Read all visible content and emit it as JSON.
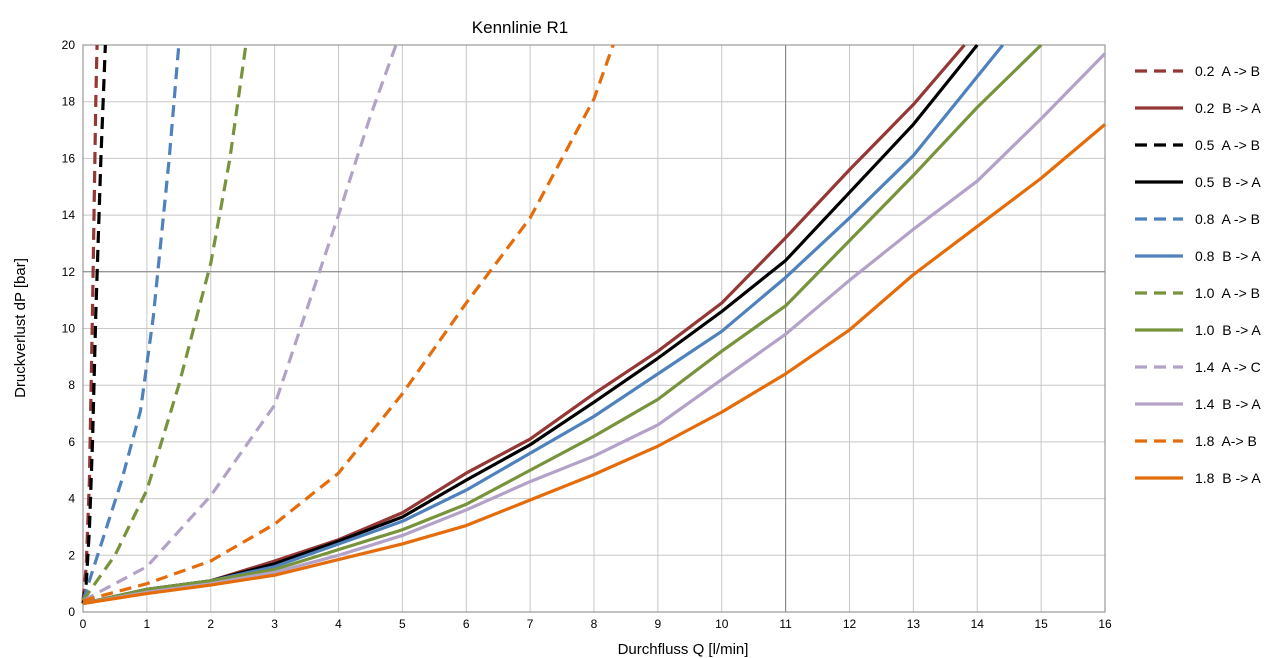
{
  "chart_data": {
    "type": "line",
    "title": "Kennlinie R1",
    "xlabel": "Durchfluss Q [l/min]",
    "ylabel": "Druckverlust dP [bar]",
    "xlim": [
      0,
      16
    ],
    "ylim": [
      0,
      20
    ],
    "xticks": [
      0,
      1,
      2,
      3,
      4,
      5,
      6,
      7,
      8,
      9,
      10,
      11,
      12,
      13,
      14,
      15,
      16
    ],
    "yticks": [
      0,
      2,
      4,
      6,
      8,
      10,
      12,
      14,
      16,
      18,
      20
    ],
    "grid": true,
    "legend_position": "right",
    "series": [
      {
        "name": "0.2  A -> B",
        "color": "#953735",
        "dash": true,
        "points": [
          [
            0,
            0.4
          ],
          [
            0.05,
            1.6
          ],
          [
            0.1,
            4.6
          ],
          [
            0.15,
            10.8
          ],
          [
            0.2,
            18.0
          ],
          [
            0.22,
            20.0
          ]
        ]
      },
      {
        "name": "0.2  B -> A",
        "color": "#953735",
        "dash": false,
        "points": [
          [
            0,
            0.3
          ],
          [
            1,
            0.8
          ],
          [
            2,
            1.1
          ],
          [
            3,
            1.8
          ],
          [
            4,
            2.55
          ],
          [
            5,
            3.5
          ],
          [
            6,
            4.9
          ],
          [
            7,
            6.1
          ],
          [
            8,
            7.7
          ],
          [
            9,
            9.2
          ],
          [
            10,
            10.9
          ],
          [
            11,
            13.2
          ],
          [
            12,
            15.6
          ],
          [
            13,
            17.9
          ],
          [
            13.8,
            20.0
          ]
        ]
      },
      {
        "name": "0.5  A -> B",
        "color": "#000000",
        "dash": true,
        "points": [
          [
            0,
            0.3
          ],
          [
            0.05,
            1.0
          ],
          [
            0.1,
            2.9
          ],
          [
            0.15,
            6.1
          ],
          [
            0.2,
            10.5
          ],
          [
            0.28,
            16.0
          ],
          [
            0.35,
            20.0
          ]
        ]
      },
      {
        "name": "0.5  B -> A",
        "color": "#000000",
        "dash": false,
        "points": [
          [
            0,
            0.3
          ],
          [
            1,
            0.8
          ],
          [
            2,
            1.1
          ],
          [
            3,
            1.7
          ],
          [
            4,
            2.5
          ],
          [
            5,
            3.35
          ],
          [
            6,
            4.65
          ],
          [
            7,
            5.9
          ],
          [
            8,
            7.4
          ],
          [
            9,
            8.95
          ],
          [
            10,
            10.6
          ],
          [
            11,
            12.4
          ],
          [
            12,
            14.8
          ],
          [
            13,
            17.2
          ],
          [
            14,
            20.0
          ]
        ]
      },
      {
        "name": "0.8  A -> B",
        "color": "#4F81BD",
        "dash": true,
        "points": [
          [
            0,
            0.4
          ],
          [
            0.3,
            2.5
          ],
          [
            0.6,
            4.6
          ],
          [
            0.9,
            7.1
          ],
          [
            1.1,
            10.4
          ],
          [
            1.35,
            16.0
          ],
          [
            1.5,
            20.0
          ]
        ]
      },
      {
        "name": "0.8  B -> A",
        "color": "#4F81BD",
        "dash": false,
        "points": [
          [
            0,
            0.3
          ],
          [
            1,
            0.8
          ],
          [
            2,
            1.1
          ],
          [
            3,
            1.6
          ],
          [
            4,
            2.4
          ],
          [
            5,
            3.2
          ],
          [
            6,
            4.3
          ],
          [
            7,
            5.6
          ],
          [
            8,
            6.9
          ],
          [
            9,
            8.4
          ],
          [
            10,
            9.9
          ],
          [
            11,
            11.8
          ],
          [
            12,
            13.9
          ],
          [
            13,
            16.1
          ],
          [
            14.4,
            20.0
          ]
        ]
      },
      {
        "name": "1.0  A -> B",
        "color": "#77933C",
        "dash": true,
        "points": [
          [
            0,
            0.4
          ],
          [
            0.5,
            2.0
          ],
          [
            1,
            4.3
          ],
          [
            1.5,
            8.0
          ],
          [
            2,
            12.3
          ],
          [
            2.3,
            16.0
          ],
          [
            2.55,
            20.0
          ]
        ]
      },
      {
        "name": "1.0  B -> A",
        "color": "#77933C",
        "dash": false,
        "points": [
          [
            0,
            0.3
          ],
          [
            1,
            0.8
          ],
          [
            2,
            1.1
          ],
          [
            3,
            1.5
          ],
          [
            4,
            2.2
          ],
          [
            5,
            2.9
          ],
          [
            6,
            3.8
          ],
          [
            7,
            5.0
          ],
          [
            8,
            6.2
          ],
          [
            9,
            7.5
          ],
          [
            10,
            9.2
          ],
          [
            11,
            10.8
          ],
          [
            12,
            13.1
          ],
          [
            13,
            15.4
          ],
          [
            14,
            17.8
          ],
          [
            15,
            20.0
          ]
        ]
      },
      {
        "name": "1.4  A -> C",
        "color": "#B3A2C7",
        "dash": true,
        "points": [
          [
            0,
            0.4
          ],
          [
            1,
            1.6
          ],
          [
            2,
            4.1
          ],
          [
            3,
            7.3
          ],
          [
            4,
            14.0
          ],
          [
            4.5,
            17.5
          ],
          [
            4.9,
            20.0
          ]
        ]
      },
      {
        "name": "1.4  B -> A",
        "color": "#B3A2C7",
        "dash": false,
        "points": [
          [
            0,
            0.3
          ],
          [
            1,
            0.7
          ],
          [
            2,
            1.0
          ],
          [
            3,
            1.4
          ],
          [
            4,
            2.0
          ],
          [
            5,
            2.7
          ],
          [
            6,
            3.6
          ],
          [
            7,
            4.6
          ],
          [
            8,
            5.5
          ],
          [
            9,
            6.6
          ],
          [
            10,
            8.2
          ],
          [
            11,
            9.8
          ],
          [
            12,
            11.7
          ],
          [
            13,
            13.5
          ],
          [
            14,
            15.2
          ],
          [
            15,
            17.4
          ],
          [
            16,
            19.7
          ]
        ]
      },
      {
        "name": "1.8  A-> B",
        "color": "#E46C0A",
        "dash": true,
        "points": [
          [
            0,
            0.4
          ],
          [
            1,
            1.0
          ],
          [
            2,
            1.8
          ],
          [
            3,
            3.1
          ],
          [
            4,
            4.9
          ],
          [
            5,
            7.7
          ],
          [
            6,
            10.9
          ],
          [
            7,
            13.9
          ],
          [
            8,
            18.1
          ],
          [
            8.3,
            20.0
          ]
        ]
      },
      {
        "name": "1.8  B -> A",
        "color": "#E46C0A",
        "dash": false,
        "points": [
          [
            0,
            0.3
          ],
          [
            1,
            0.65
          ],
          [
            2,
            0.95
          ],
          [
            3,
            1.3
          ],
          [
            4,
            1.85
          ],
          [
            5,
            2.4
          ],
          [
            6,
            3.05
          ],
          [
            7,
            3.95
          ],
          [
            8,
            4.85
          ],
          [
            9,
            5.85
          ],
          [
            10,
            7.05
          ],
          [
            11,
            8.4
          ],
          [
            12,
            9.95
          ],
          [
            13,
            11.9
          ],
          [
            14,
            13.6
          ],
          [
            15,
            15.3
          ],
          [
            16,
            17.2
          ]
        ]
      }
    ]
  }
}
